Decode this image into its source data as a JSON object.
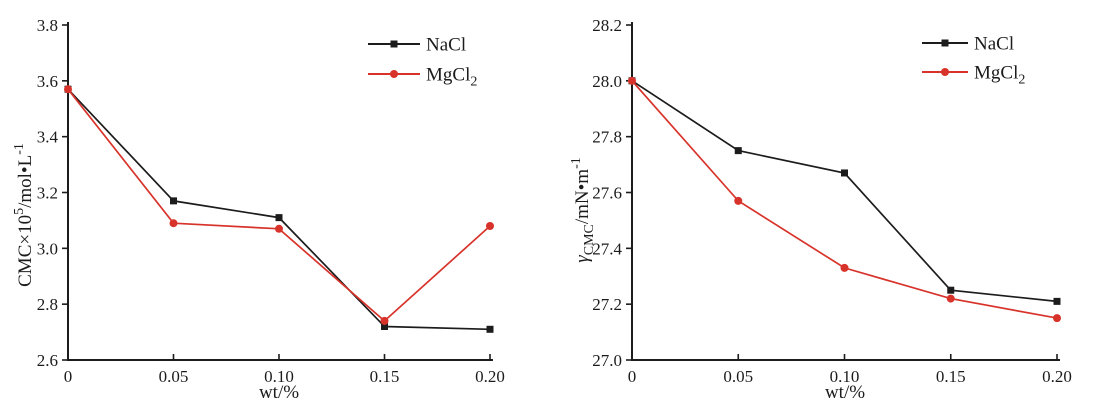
{
  "figure": {
    "background": "#ffffff",
    "axis_color": "#1c1c1c"
  },
  "chart_data": [
    {
      "type": "line",
      "title": "",
      "xlabel": "wt/%",
      "ylabel": "CMC×10^5/mol•L^-1",
      "ylabel_parts": [
        {
          "t": "CMC×10"
        },
        {
          "t": "5",
          "sup": true
        },
        {
          "t": "/mol•L"
        },
        {
          "t": "-1",
          "sup": true
        }
      ],
      "xlim": [
        0,
        0.2
      ],
      "ylim": [
        2.6,
        3.8
      ],
      "xticks": [
        0,
        0.05,
        0.1,
        0.15,
        0.2
      ],
      "xtick_labels": [
        "0",
        "0.05",
        "0.10",
        "0.15",
        "0.20"
      ],
      "yticks": [
        2.6,
        2.8,
        3.0,
        3.2,
        3.4,
        3.6,
        3.8
      ],
      "ytick_labels": [
        "2.6",
        "2.8",
        "3.0",
        "3.2",
        "3.4",
        "3.6",
        "3.8"
      ],
      "x": [
        0,
        0.05,
        0.1,
        0.15,
        0.2
      ],
      "series": [
        {
          "name": "NaCl",
          "name_parts": [
            {
              "t": "NaCl"
            }
          ],
          "color": "#1c1c1c",
          "marker": "square",
          "values": [
            3.57,
            3.17,
            3.11,
            2.72,
            2.71
          ]
        },
        {
          "name": "MgCl2",
          "name_parts": [
            {
              "t": "MgCl"
            },
            {
              "t": "2",
              "sub": true
            }
          ],
          "color": "#d8332a",
          "marker": "circle",
          "values": [
            3.57,
            3.09,
            3.07,
            2.74,
            3.08
          ]
        }
      ],
      "legend_position": "top-right",
      "grid": false
    },
    {
      "type": "line",
      "title": "",
      "xlabel": "wt/%",
      "ylabel": "γCMC/mN•m^-1",
      "ylabel_parts": [
        {
          "t": "γ",
          "i": true
        },
        {
          "t": "CMC",
          "sub": true
        },
        {
          "t": "/mN•m"
        },
        {
          "t": "-1",
          "sup": true
        }
      ],
      "xlim": [
        0,
        0.2
      ],
      "ylim": [
        27.0,
        28.2
      ],
      "xticks": [
        0,
        0.05,
        0.1,
        0.15,
        0.2
      ],
      "xtick_labels": [
        "0",
        "0.05",
        "0.10",
        "0.15",
        "0.20"
      ],
      "yticks": [
        27.0,
        27.2,
        27.4,
        27.6,
        27.8,
        28.0,
        28.2
      ],
      "ytick_labels": [
        "27.0",
        "27.2",
        "27.4",
        "27.6",
        "27.8",
        "28.0",
        "28.2"
      ],
      "x": [
        0,
        0.05,
        0.1,
        0.15,
        0.2
      ],
      "series": [
        {
          "name": "NaCl",
          "name_parts": [
            {
              "t": "NaCl"
            }
          ],
          "color": "#1c1c1c",
          "marker": "square",
          "values": [
            28.0,
            27.75,
            27.67,
            27.25,
            27.21
          ]
        },
        {
          "name": "MgCl2",
          "name_parts": [
            {
              "t": "MgCl"
            },
            {
              "t": "2",
              "sub": true
            }
          ],
          "color": "#d8332a",
          "marker": "circle",
          "values": [
            28.0,
            27.57,
            27.33,
            27.22,
            27.15
          ]
        }
      ],
      "legend_position": "top-right",
      "grid": false
    }
  ]
}
